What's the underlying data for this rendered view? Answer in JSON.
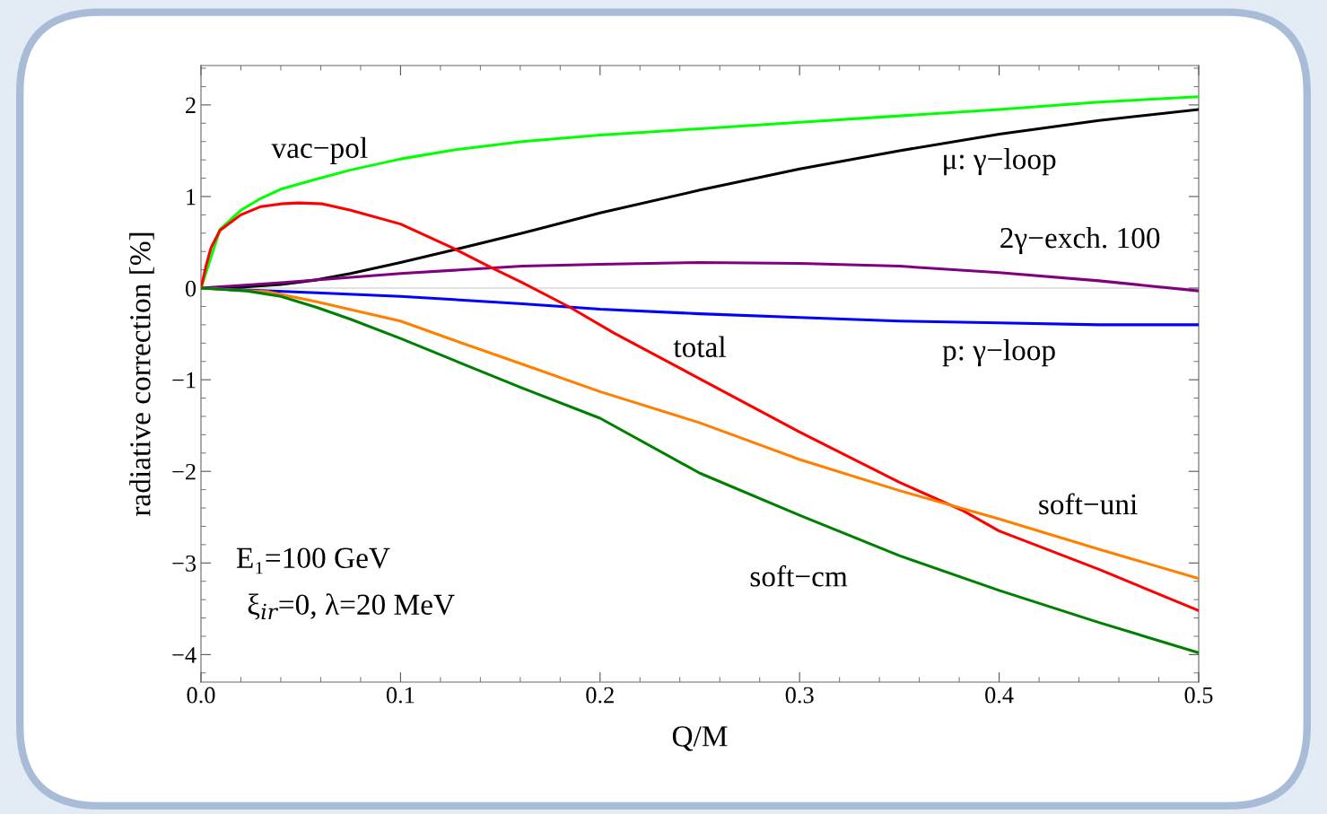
{
  "chart_data": {
    "type": "line",
    "xlabel": "Q/M",
    "ylabel": "radiative correction [%]",
    "xlim": [
      0,
      0.5
    ],
    "ylim": [
      -4.3,
      2.43
    ],
    "xticks": [
      {
        "value": 0,
        "label": "0.0"
      },
      0.1,
      0.2,
      0.3,
      0.4,
      0.5
    ],
    "yticks": [
      {
        "value": -4,
        "label": "−4"
      },
      {
        "value": -3,
        "label": "−3"
      },
      {
        "value": -2,
        "label": "−2"
      },
      {
        "value": -1,
        "label": "−1"
      },
      0,
      1,
      2
    ],
    "grid": false,
    "legend": false,
    "marker": "none",
    "line_style": "solid",
    "ref_lines": [
      {
        "axis": "y",
        "value": 0,
        "label": null,
        "color": "#d9d9d9"
      }
    ],
    "annotations": [
      "E₁=100 GeV",
      "ξ$_{ir}$=0, λ=20 MeV"
    ],
    "series": [
      {
        "name": "vac−pol",
        "color": "#00ff00",
        "x": [
          0,
          0.0095,
          0.02,
          0.03,
          0.04,
          0.058,
          0.075,
          0.1,
          0.127,
          0.161,
          0.2,
          0.25,
          0.3,
          0.35,
          0.4,
          0.45,
          0.5
        ],
        "values": [
          0,
          0.64,
          0.85,
          0.98,
          1.08,
          1.19,
          1.29,
          1.41,
          1.51,
          1.6,
          1.67,
          1.74,
          1.81,
          1.88,
          1.95,
          2.03,
          2.09
        ]
      },
      {
        "name": "μ: γ−loop",
        "color": "#000000",
        "x": [
          0,
          0.02,
          0.04,
          0.058,
          0.075,
          0.1,
          0.127,
          0.161,
          0.2,
          0.25,
          0.3,
          0.35,
          0.4,
          0.45,
          0.5
        ],
        "values": [
          0,
          0.01,
          0.04,
          0.09,
          0.16,
          0.28,
          0.42,
          0.6,
          0.82,
          1.07,
          1.3,
          1.5,
          1.68,
          1.83,
          1.95
        ]
      },
      {
        "name": "2γ−exch. 100",
        "color": "#800080",
        "x": [
          0,
          0.04,
          0.1,
          0.161,
          0.2,
          0.25,
          0.3,
          0.35,
          0.4,
          0.45,
          0.5
        ],
        "values": [
          0,
          0.06,
          0.16,
          0.24,
          0.26,
          0.28,
          0.27,
          0.24,
          0.17,
          0.08,
          -0.03
        ]
      },
      {
        "name": "p: γ−loop",
        "color": "#0000ff",
        "x": [
          0,
          0.058,
          0.1,
          0.161,
          0.2,
          0.25,
          0.3,
          0.35,
          0.4,
          0.45,
          0.5
        ],
        "values": [
          0,
          -0.05,
          -0.09,
          -0.17,
          -0.23,
          -0.28,
          -0.32,
          -0.36,
          -0.38,
          -0.4,
          -0.4
        ]
      },
      {
        "name": "total",
        "color": "#ff0000",
        "x": [
          0,
          0.0026,
          0.005,
          0.0095,
          0.02,
          0.03,
          0.04,
          0.049,
          0.061,
          0.075,
          0.1,
          0.127,
          0.145,
          0.161,
          0.185,
          0.207,
          0.25,
          0.3,
          0.35,
          0.382,
          0.4,
          0.45,
          0.5
        ],
        "values": [
          0,
          0.25,
          0.44,
          0.63,
          0.8,
          0.89,
          0.92,
          0.93,
          0.92,
          0.85,
          0.7,
          0.43,
          0.23,
          0.06,
          -0.21,
          -0.49,
          -0.99,
          -1.57,
          -2.12,
          -2.43,
          -2.65,
          -3.07,
          -3.52
        ]
      },
      {
        "name": "soft−uni",
        "color": "#ff8000",
        "x": [
          0,
          0.034,
          0.058,
          0.1,
          0.127,
          0.161,
          0.2,
          0.25,
          0.3,
          0.35,
          0.4,
          0.45,
          0.5
        ],
        "values": [
          0,
          -0.04,
          -0.15,
          -0.36,
          -0.57,
          -0.83,
          -1.13,
          -1.47,
          -1.87,
          -2.21,
          -2.52,
          -2.85,
          -3.17
        ]
      },
      {
        "name": "soft−cm",
        "color": "#008000",
        "x": [
          0,
          0.023,
          0.04,
          0.058,
          0.075,
          0.1,
          0.127,
          0.161,
          0.2,
          0.25,
          0.3,
          0.35,
          0.4,
          0.45,
          0.5
        ],
        "values": [
          0,
          -0.03,
          -0.09,
          -0.21,
          -0.34,
          -0.55,
          -0.79,
          -1.09,
          -1.42,
          -2.02,
          -2.48,
          -2.92,
          -3.3,
          -3.65,
          -3.98
        ]
      }
    ]
  }
}
